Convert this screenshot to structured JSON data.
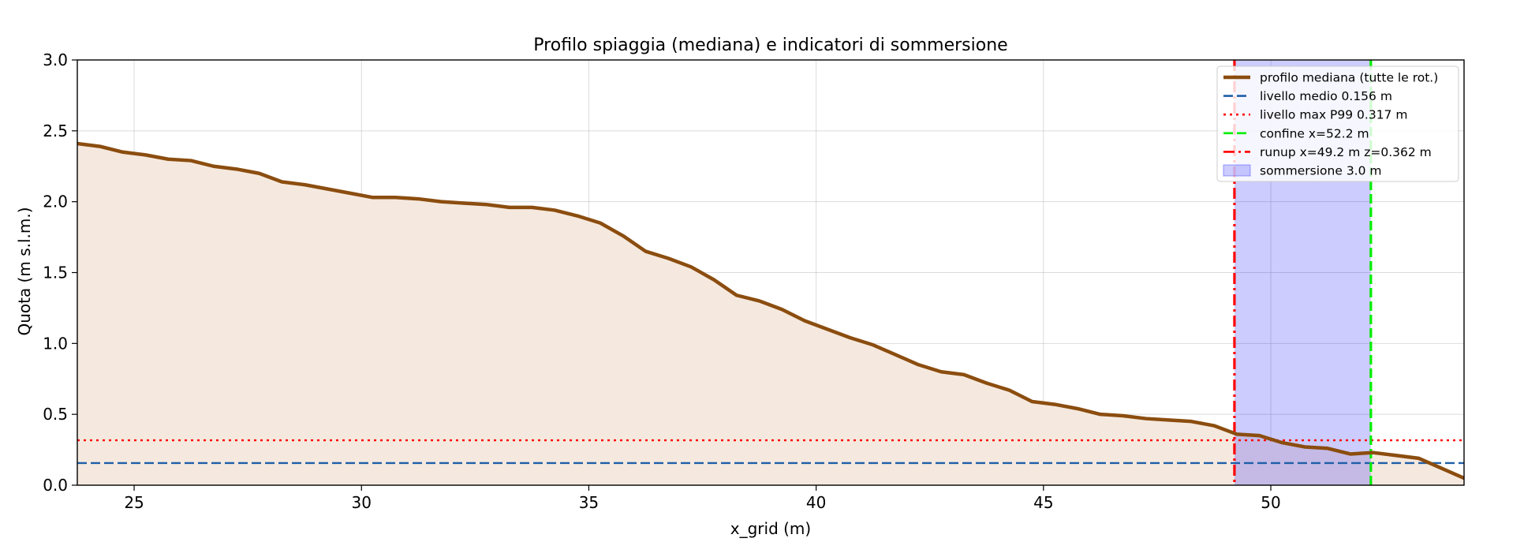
{
  "chart_data": {
    "type": "area",
    "title": "Profilo spiaggia (mediana) e indicatori di sommersione",
    "xlabel": "x_grid (m)",
    "ylabel": "Quota (m s.l.m.)",
    "xlim": [
      23.75,
      54.25
    ],
    "ylim": [
      0,
      3.0
    ],
    "xticks": [
      25,
      30,
      35,
      40,
      45,
      50
    ],
    "yticks": [
      0.0,
      0.5,
      1.0,
      1.5,
      2.0,
      2.5,
      3.0
    ],
    "xtick_labels": [
      "25",
      "30",
      "35",
      "40",
      "45",
      "50"
    ],
    "ytick_labels": [
      "0.0",
      "0.5",
      "1.0",
      "1.5",
      "2.0",
      "2.5",
      "3.0"
    ],
    "grid": true,
    "legend_position": "top-right",
    "series": [
      {
        "name": "profilo mediana (tutte le rot.)",
        "color": "#8b4d0f",
        "fill": "#f5e9df",
        "x": [
          23.75,
          24.25,
          24.75,
          25.25,
          25.75,
          26.25,
          26.75,
          27.25,
          27.75,
          28.25,
          28.75,
          29.25,
          29.75,
          30.25,
          30.75,
          31.25,
          31.75,
          32.25,
          32.75,
          33.25,
          33.75,
          34.25,
          34.75,
          35.25,
          35.75,
          36.25,
          36.75,
          37.25,
          37.75,
          38.25,
          38.75,
          39.25,
          39.75,
          40.25,
          40.75,
          41.25,
          41.75,
          42.25,
          42.75,
          43.25,
          43.75,
          44.25,
          44.75,
          45.25,
          45.75,
          46.25,
          46.75,
          47.25,
          47.75,
          48.25,
          48.75,
          49.25,
          49.75,
          50.25,
          50.75,
          51.25,
          51.75,
          52.25,
          52.75,
          53.25,
          53.75,
          54.25
        ],
        "y": [
          2.41,
          2.39,
          2.35,
          2.33,
          2.3,
          2.29,
          2.25,
          2.23,
          2.2,
          2.14,
          2.12,
          2.09,
          2.06,
          2.03,
          2.03,
          2.02,
          2.0,
          1.99,
          1.98,
          1.96,
          1.96,
          1.94,
          1.9,
          1.85,
          1.76,
          1.65,
          1.6,
          1.54,
          1.45,
          1.34,
          1.3,
          1.24,
          1.16,
          1.1,
          1.04,
          0.99,
          0.92,
          0.85,
          0.8,
          0.78,
          0.72,
          0.67,
          0.59,
          0.57,
          0.54,
          0.5,
          0.49,
          0.47,
          0.46,
          0.45,
          0.42,
          0.36,
          0.35,
          0.3,
          0.27,
          0.26,
          0.22,
          0.23,
          0.21,
          0.19,
          0.12,
          0.05
        ]
      }
    ],
    "hlines": [
      {
        "name": "livello medio 0.156 m",
        "y": 0.156,
        "color": "#1f5fa8",
        "style": "dashed"
      },
      {
        "name": "livello max P99 0.317 m",
        "y": 0.317,
        "color": "#ff0000",
        "style": "dotted"
      }
    ],
    "vlines": [
      {
        "name": "confine x=52.2 m",
        "x": 52.2,
        "color": "#00ee00",
        "style": "dashed"
      },
      {
        "name": "runup x=49.2 m  z=0.362 m",
        "x": 49.2,
        "color": "#ff0000",
        "style": "dashdot"
      }
    ],
    "spans": [
      {
        "name": "sommersione 3.0 m",
        "x0": 49.2,
        "x1": 52.2,
        "color": "#0000ff",
        "opacity": 0.2
      }
    ],
    "legend": [
      {
        "label": "profilo mediana (tutte le rot.)",
        "kind": "line",
        "color": "#8b4d0f",
        "style": "solid"
      },
      {
        "label": "livello medio 0.156 m",
        "kind": "line",
        "color": "#1f5fa8",
        "style": "dashed"
      },
      {
        "label": "livello max P99 0.317 m",
        "kind": "line",
        "color": "#ff0000",
        "style": "dotted"
      },
      {
        "label": "confine x=52.2 m",
        "kind": "line",
        "color": "#00ee00",
        "style": "dashed"
      },
      {
        "label": "runup x=49.2 m  z=0.362 m",
        "kind": "line",
        "color": "#ff0000",
        "style": "dashdot"
      },
      {
        "label": "sommersione 3.0 m",
        "kind": "patch",
        "color": "#0000ff",
        "style": "solid"
      }
    ]
  }
}
